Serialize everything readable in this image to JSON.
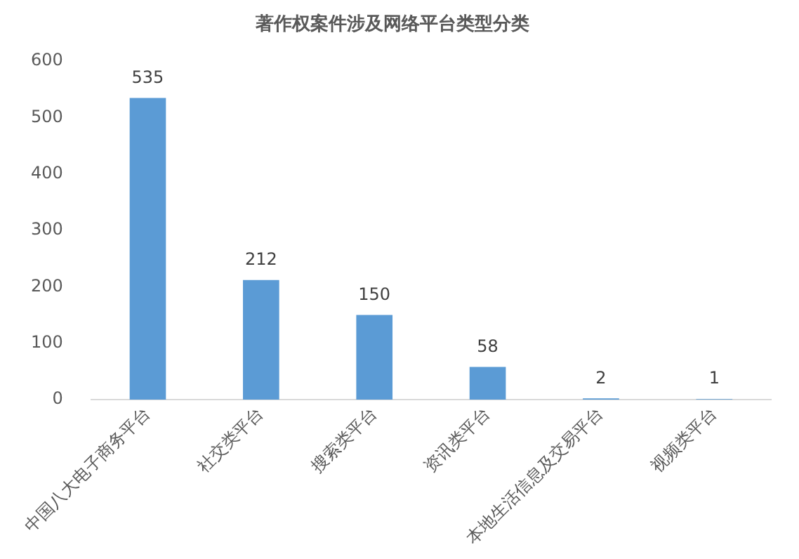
{
  "chart_data": {
    "type": "bar",
    "title": "著作权案件涉及网络平台类型分类",
    "categories": [
      "中国八大电子商务平台",
      "社交类平台",
      "搜索类平台",
      "资讯类平台",
      "本地生活信息及交易平台",
      "视频类平台"
    ],
    "values": [
      535,
      212,
      150,
      58,
      2,
      1
    ],
    "color": "#5b9bd5",
    "ylim": [
      0,
      600
    ],
    "yticks": [
      0,
      100,
      200,
      300,
      400,
      500,
      600
    ],
    "grid": false,
    "legend": false,
    "data_labels": true
  }
}
